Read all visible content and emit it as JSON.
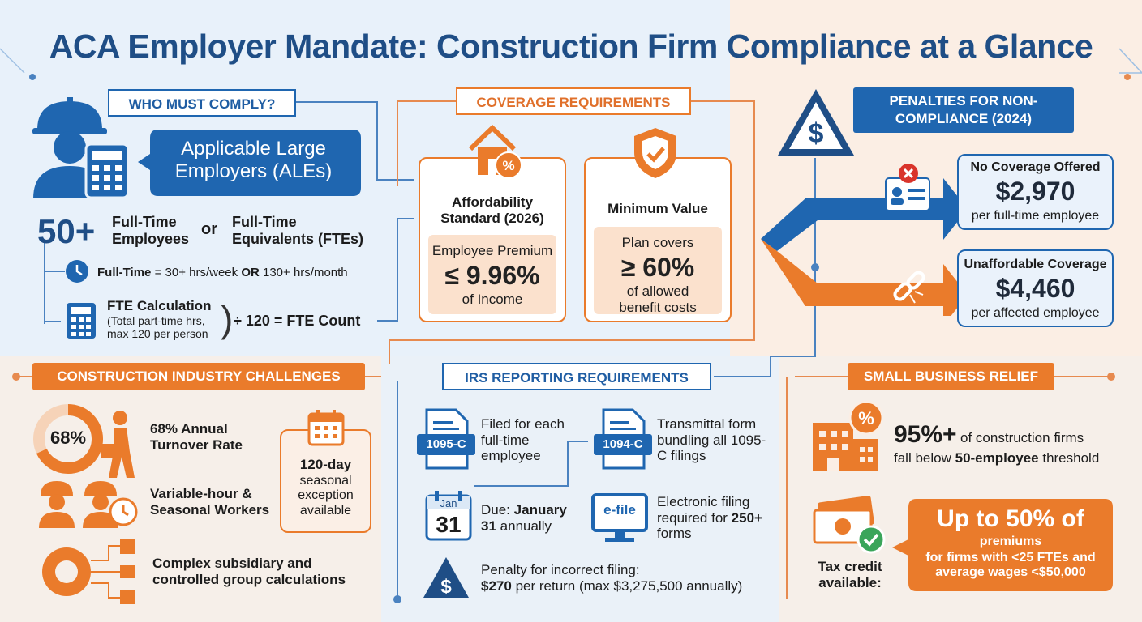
{
  "title": "ACA Employer Mandate: Construction Firm Compliance at a Glance",
  "who": {
    "header": "WHO MUST COMPLY?",
    "bubble": "Applicable Large Employers (ALEs)",
    "big": "50+",
    "ft_employees": "Full-Time Employees",
    "or": "or",
    "fte": "Full-Time Equivalents (FTEs)",
    "fulltime_label": "Full-Time",
    "fulltime_def_a": "= 30+ hrs/week",
    "fulltime_or": "OR",
    "fulltime_def_b": "130+ hrs/month",
    "fte_calc_title": "FTE Calculation",
    "fte_calc_desc": "(Total part-time hrs, max 120 per person",
    "fte_result": "÷ 120 = FTE Count"
  },
  "coverage": {
    "header": "COVERAGE REQUIREMENTS",
    "afford_title": "Affordability Standard (2026)",
    "afford_label": "Employee Premium",
    "afford_value": "≤ 9.96%",
    "afford_sub": "of Income",
    "mv_title": "Minimum Value",
    "mv_label": "Plan covers",
    "mv_value": "≥ 60%",
    "mv_sub": "of allowed benefit costs"
  },
  "penalties": {
    "header": "PENALTIES FOR NON-COMPLIANCE (2024)",
    "a_title": "No Coverage Offered",
    "a_amount": "$2,970",
    "a_sub": "per full-time employee",
    "b_title": "Unaffordable Coverage",
    "b_amount": "$4,460",
    "b_sub": "per affected employee"
  },
  "challenges": {
    "header": "CONSTRUCTION INDUSTRY CHALLENGES",
    "ring": "68%",
    "turnover": "68% Annual Turnover Rate",
    "variable": "Variable-hour & Seasonal Workers",
    "seasonal_bold": "120-day",
    "seasonal_rest": "seasonal exception available",
    "subsidiary": "Complex subsidiary and controlled group calculations",
    "turnover_fraction": 0.68
  },
  "irs": {
    "header": "IRS REPORTING REQUIREMENTS",
    "form_1095": "1095-C",
    "f1095_desc": "Filed for each full-time employee",
    "form_1094": "1094-C",
    "f1094_desc": "Transmittal form bundling all 1095-C filings",
    "cal_month": "Jan",
    "cal_day": "31",
    "due_pre": "Due:",
    "due_bold": "January 31",
    "due_post": "annually",
    "efile": "e-file",
    "efile_desc_a": "Electronic filing required for",
    "efile_bold": "250+",
    "efile_desc_b": "forms",
    "penalty_label": "Penalty for incorrect filing:",
    "penalty_bold": "$270",
    "penalty_rest": "per return (max $3,275,500 annually)"
  },
  "relief": {
    "header": "SMALL BUSINESS RELIEF",
    "stat": "95%+",
    "stat_rest": "of construction firms",
    "threshold_pre": "fall below",
    "threshold_bold": "50-employee",
    "threshold_post": "threshold",
    "credit_label": "Tax credit available:",
    "credit_big": "Up to 50% of",
    "credit_mid": "premiums",
    "credit_small": "for firms with <25 FTEs and average wages <$50,000"
  },
  "colors": {
    "blue": "#1f66b0",
    "orange": "#ea7b2b",
    "navy": "#1f4e86"
  }
}
